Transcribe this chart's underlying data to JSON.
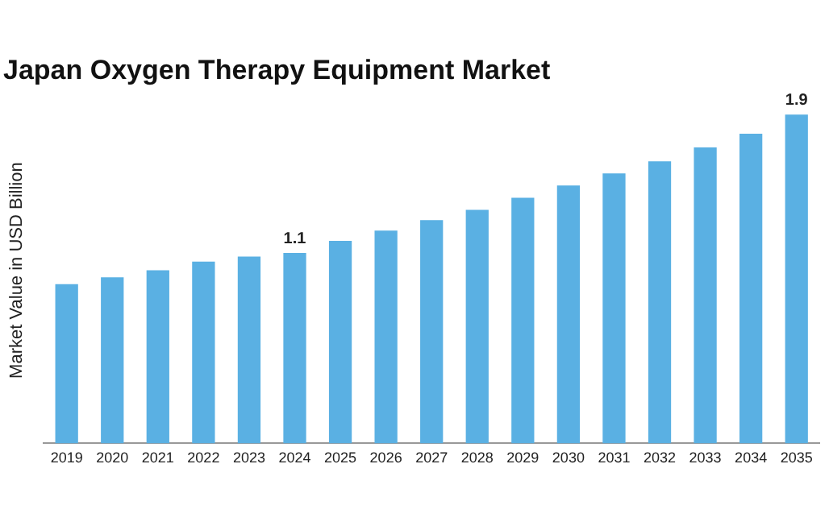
{
  "chart_data": {
    "type": "bar",
    "title": "Japan Oxygen Therapy Equipment Market",
    "ylabel": "Market Value in USD Billion",
    "categories": [
      "2019",
      "2020",
      "2021",
      "2022",
      "2023",
      "2024",
      "2025",
      "2026",
      "2027",
      "2028",
      "2029",
      "2030",
      "2031",
      "2032",
      "2033",
      "2034",
      "2035"
    ],
    "values": [
      0.92,
      0.96,
      1.0,
      1.05,
      1.08,
      1.1,
      1.17,
      1.23,
      1.29,
      1.35,
      1.42,
      1.49,
      1.56,
      1.63,
      1.71,
      1.79,
      1.9
    ],
    "value_labels": [
      null,
      null,
      null,
      null,
      null,
      "1.1",
      null,
      null,
      null,
      null,
      null,
      null,
      null,
      null,
      null,
      null,
      "1.9"
    ],
    "color": "#5ab0e3",
    "grid": false,
    "legend": false
  }
}
